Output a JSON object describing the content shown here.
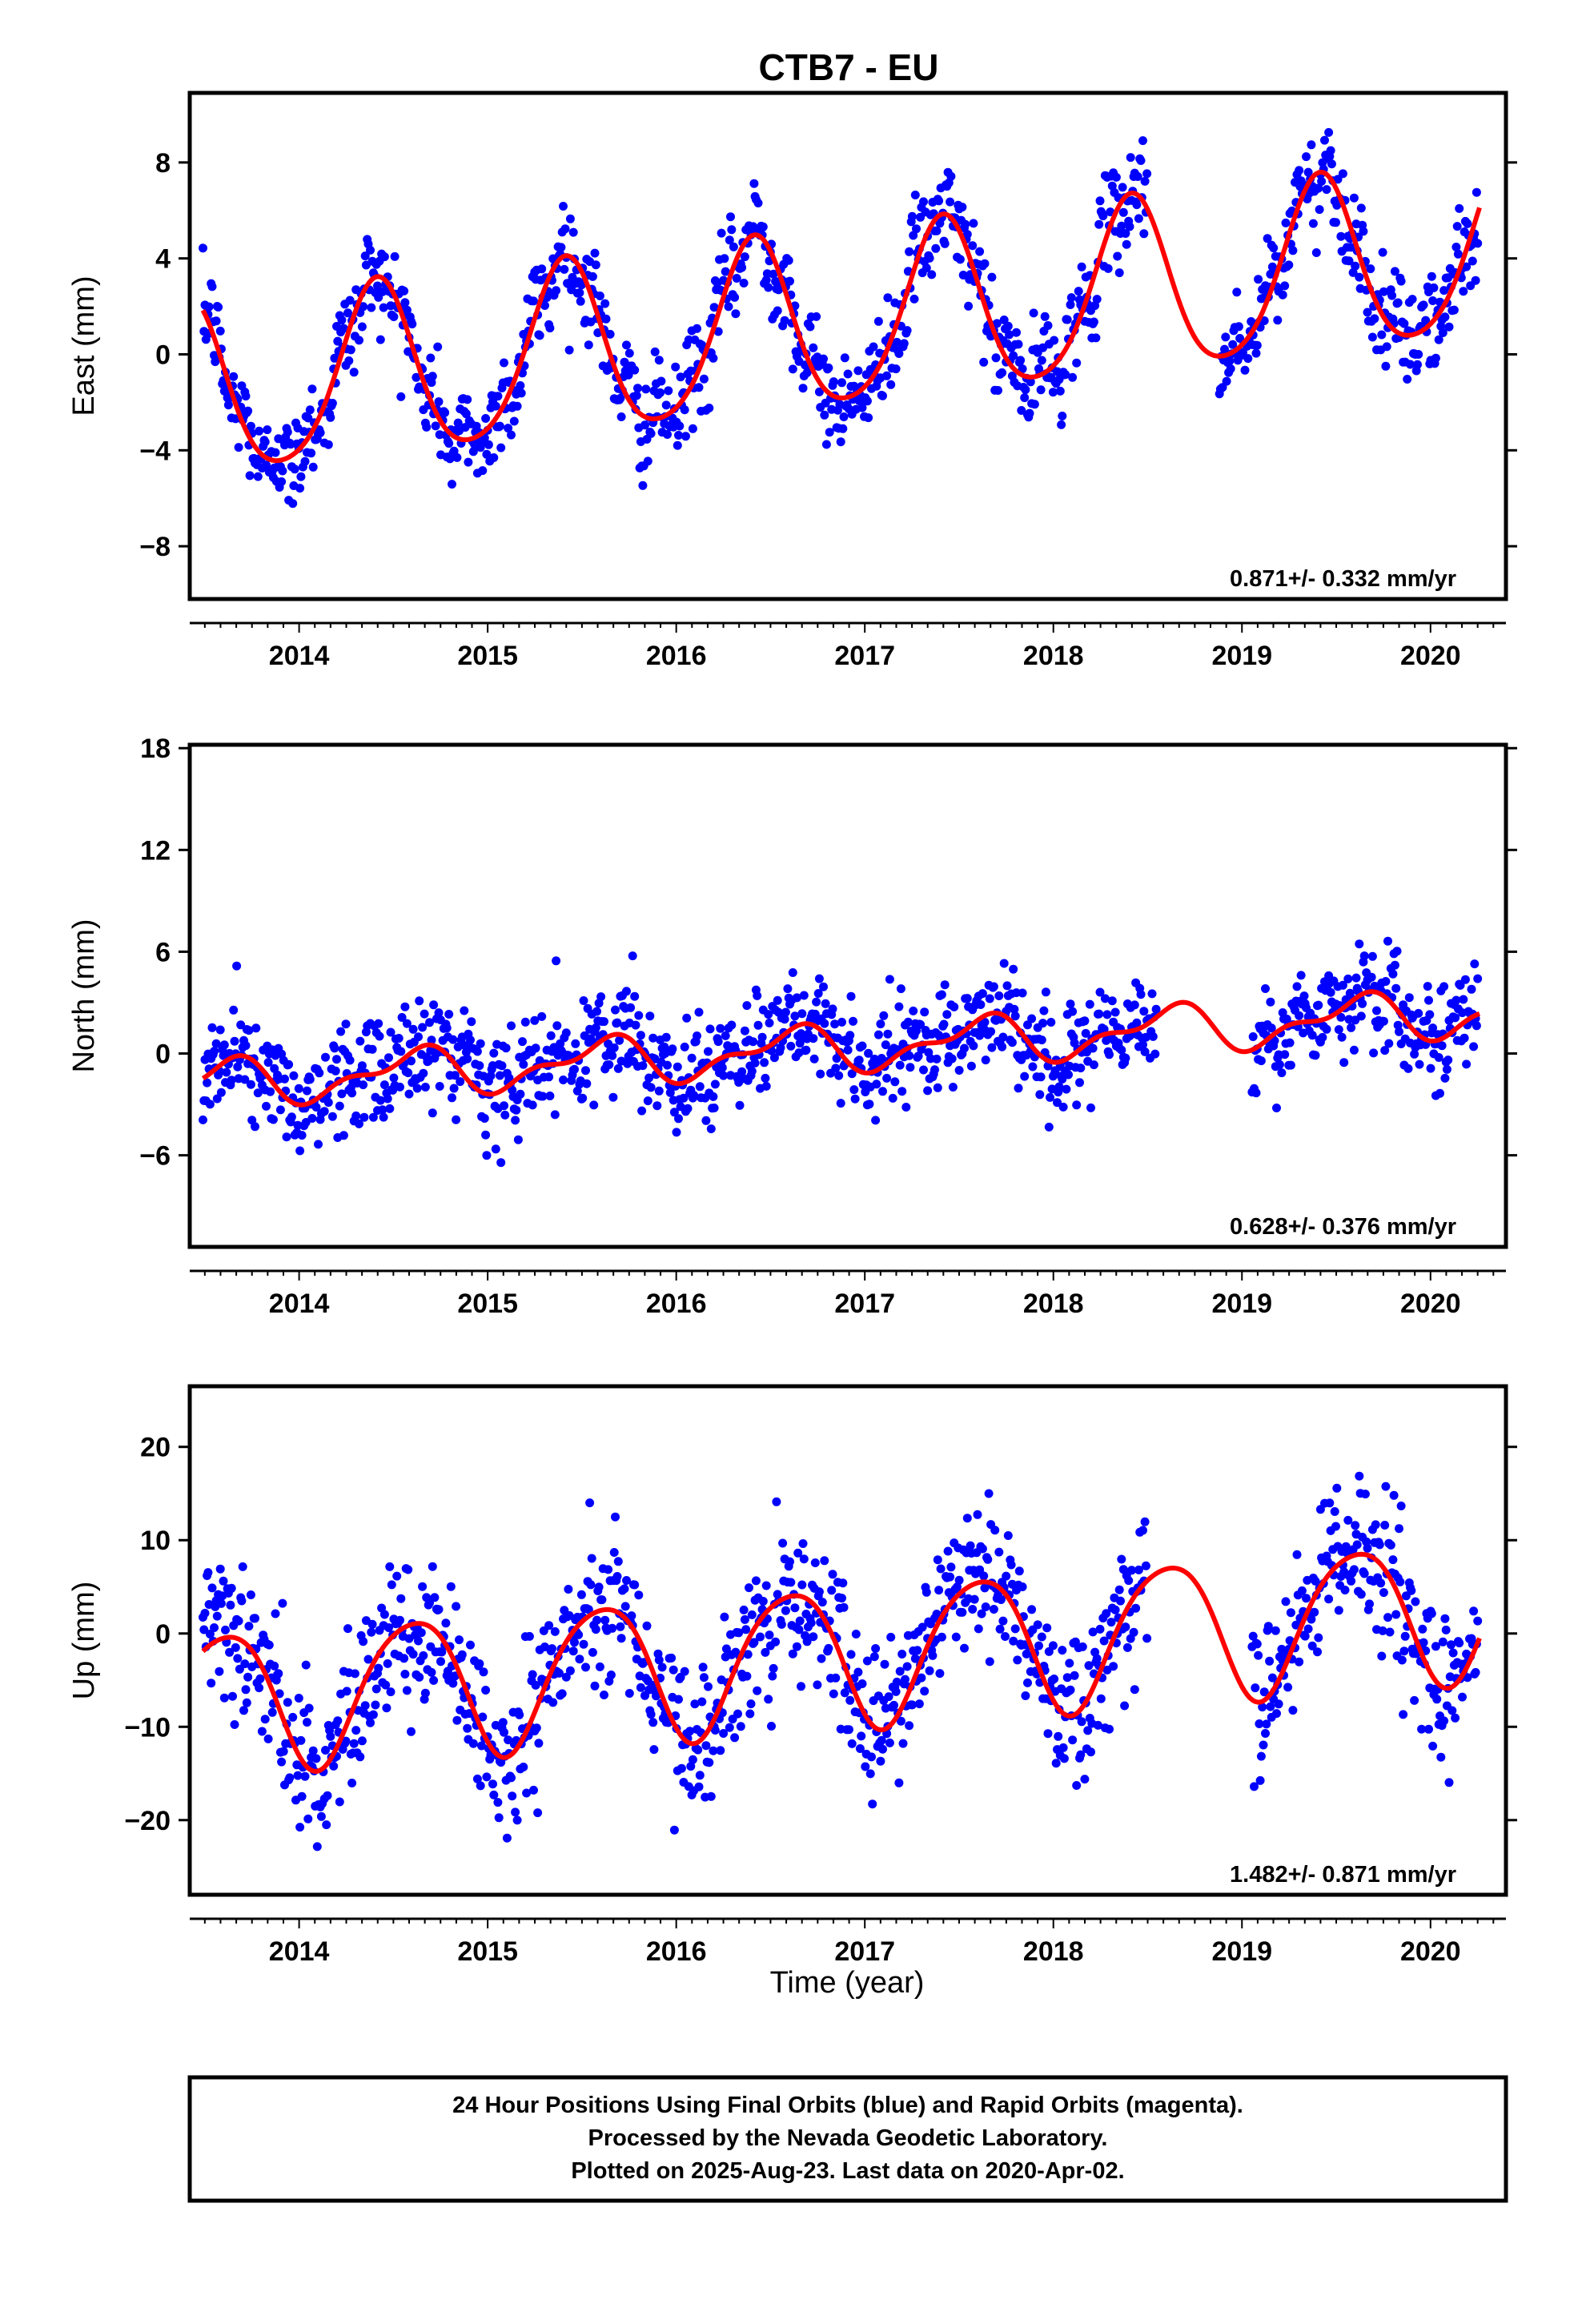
{
  "figure": {
    "title": "CTB7 - EU",
    "xlabel": "Time (year)",
    "footer": [
      "24 Hour Positions Using Final Orbits (blue) and Rapid Orbits (magenta).",
      "Processed by the Nevada Geodetic Laboratory.",
      "Plotted on 2025-Aug-23. Last data on 2020-Apr-02."
    ]
  },
  "colors": {
    "points": "#0000ff",
    "model": "#ff0000",
    "frame": "#000000"
  },
  "chart_data": [
    {
      "type": "scatter",
      "name": "east",
      "ylabel": "East (mm)",
      "rate_text": "0.871+/- 0.332 mm/yr",
      "xlim": [
        2013.42,
        2020.4
      ],
      "ylim": [
        -10.2,
        10.9
      ],
      "xticks": [
        2014,
        2015,
        2016,
        2017,
        2018,
        2019,
        2020
      ],
      "yticks": [
        -8,
        -4,
        0,
        4,
        8
      ],
      "grid": false,
      "model": {
        "slope": 0.871,
        "y0": 1.4,
        "amp_annual": 3.6,
        "phase_annual": 0.16,
        "amp_semi": 0.5,
        "phase_semi": 0.3
      },
      "points": {
        "scatter_sd": 1.0,
        "gap": [
          2018.5,
          2018.88
        ]
      }
    },
    {
      "type": "scatter",
      "name": "north",
      "ylabel": "North (mm)",
      "rate_text": "0.628+/- 0.376 mm/yr",
      "xlim": [
        2013.42,
        2020.4
      ],
      "ylim": [
        -11.4,
        18.2
      ],
      "xticks": [
        2014,
        2015,
        2016,
        2017,
        2018,
        2019,
        2020
      ],
      "yticks": [
        -6,
        0,
        6,
        12,
        18
      ],
      "grid": false,
      "model": {
        "slope": 0.628,
        "y0": 0.4,
        "amp_annual": 1.2,
        "phase_annual": 0.35,
        "amp_semi": 0.6,
        "phase_semi": 0.1
      },
      "points": {
        "scatter_sd": 1.5,
        "gap": [
          2018.55,
          2019.05
        ]
      }
    },
    {
      "type": "scatter",
      "name": "up",
      "ylabel": "Up (mm)",
      "rate_text": "1.482+/- 0.871 mm/yr",
      "xlim": [
        2013.42,
        2020.4
      ],
      "ylim": [
        -28,
        26.5
      ],
      "xticks": [
        2014,
        2015,
        2016,
        2017,
        2018,
        2019,
        2020
      ],
      "yticks": [
        -20,
        -10,
        0,
        10,
        20
      ],
      "grid": false,
      "model": {
        "slope": 1.482,
        "y0": -2.0,
        "amp_annual": 7.5,
        "phase_annual": 0.35,
        "amp_semi": 1.0,
        "phase_semi": 0.2
      },
      "points": {
        "scatter_sd": 4.0,
        "gap": [
          2018.5,
          2019.05
        ]
      }
    }
  ]
}
